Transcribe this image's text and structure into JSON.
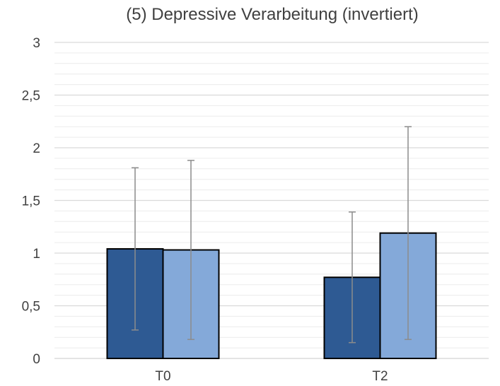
{
  "chart_data": {
    "type": "bar",
    "title": "(5) Depressive Verarbeitung (invertiert)",
    "xlabel": "",
    "ylabel": "",
    "categories": [
      "T0",
      "T2"
    ],
    "ylim": [
      0,
      3
    ],
    "yticks": [
      0,
      0.5,
      1,
      1.5,
      2,
      2.5,
      3
    ],
    "ytick_labels": [
      "0",
      "0,5",
      "1",
      "1,5",
      "2",
      "2,5",
      "3"
    ],
    "minor_gridlines": true,
    "major_gridlines": true,
    "legend": "none",
    "series": [
      {
        "color": "#2e5a93",
        "values": [
          1.04,
          0.77
        ],
        "error_low": [
          0.27,
          0.15
        ],
        "error_high": [
          1.81,
          1.39
        ]
      },
      {
        "color": "#84a9d9",
        "values": [
          1.03,
          1.19
        ],
        "error_low": [
          0.18,
          0.18
        ],
        "error_high": [
          1.88,
          2.2
        ]
      }
    ]
  }
}
